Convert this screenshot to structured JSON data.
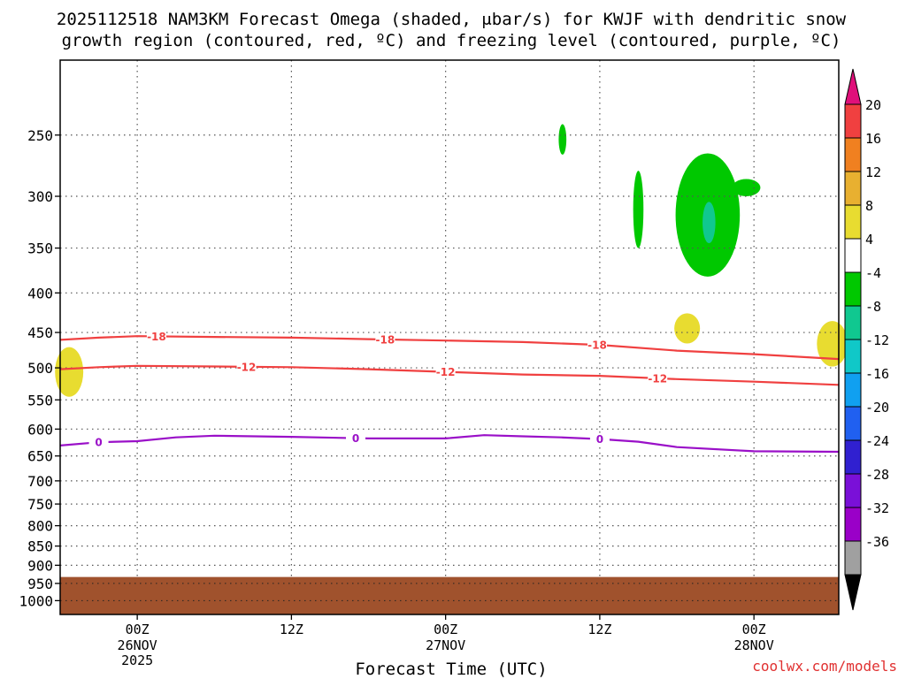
{
  "title_line1": "2025112518 NAM3KM Forecast Omega (shaded, μbar/s) for KWJF with dendritic snow",
  "title_line2": "growth region (contoured, red, ºC) and freezing level (contoured, purple, ºC)",
  "xlabel": "Forecast Time (UTC)",
  "credit": "coolwx.com/models",
  "colors": {
    "dgz_contour": "#f04040",
    "freezing_contour": "#9a10c8",
    "terrain": "#a0522d",
    "grid": "#555555"
  },
  "chart_data": {
    "type": "heatmap",
    "x_unit": "forecast hour",
    "x_ticks": [
      {
        "hour": 6,
        "label": "00Z",
        "sub1": "26NOV",
        "sub2": "2025"
      },
      {
        "hour": 18,
        "label": "12Z",
        "sub1": "",
        "sub2": ""
      },
      {
        "hour": 30,
        "label": "00Z",
        "sub1": "27NOV",
        "sub2": ""
      },
      {
        "hour": 42,
        "label": "12Z",
        "sub1": "",
        "sub2": ""
      },
      {
        "hour": 54,
        "label": "00Z",
        "sub1": "28NOV",
        "sub2": ""
      }
    ],
    "xlim": [
      0,
      60.6
    ],
    "y_unit": "pressure (hPa)",
    "y_ticks": [
      250,
      300,
      350,
      400,
      450,
      500,
      550,
      600,
      650,
      700,
      750,
      800,
      850,
      900,
      950,
      1000
    ],
    "ylim": [
      1042,
      200
    ],
    "y_scale": "log",
    "grid": true,
    "colorbar": {
      "levels": [
        -36,
        -32,
        -28,
        -24,
        -20,
        -16,
        -12,
        -8,
        -4,
        4,
        8,
        12,
        16,
        20
      ],
      "labels": [
        "20",
        "16",
        "12",
        "8",
        "4",
        "-4",
        "-8",
        "-12",
        "-16",
        "-20",
        "-24",
        "-28",
        "-32",
        "-36"
      ],
      "colors": [
        "#000000",
        "#a0a0a0",
        "#9a00c8",
        "#7a10d8",
        "#3020d0",
        "#2060f0",
        "#10a0f0",
        "#10c8c8",
        "#10c890",
        "#00c800",
        "#ffffff",
        "#e8dc30",
        "#e8b030",
        "#f08020",
        "#f04040",
        "#e0107a"
      ]
    },
    "series": [
      {
        "name": "-18",
        "kind": "dgz",
        "points": [
          [
            0,
            460
          ],
          [
            3,
            457
          ],
          [
            6,
            455
          ],
          [
            12,
            456
          ],
          [
            18,
            457
          ],
          [
            24,
            459
          ],
          [
            30,
            461
          ],
          [
            36,
            463
          ],
          [
            42,
            467
          ],
          [
            48,
            475
          ],
          [
            54,
            480
          ],
          [
            60.6,
            487
          ]
        ],
        "label_hours": [
          7.5,
          25.3,
          41.8
        ]
      },
      {
        "name": "-12",
        "kind": "dgz",
        "points": [
          [
            0,
            502
          ],
          [
            3,
            499
          ],
          [
            6,
            497
          ],
          [
            12,
            498
          ],
          [
            18,
            499
          ],
          [
            24,
            502
          ],
          [
            30,
            506
          ],
          [
            36,
            510
          ],
          [
            42,
            512
          ],
          [
            48,
            517
          ],
          [
            54,
            521
          ],
          [
            60.6,
            526
          ]
        ],
        "label_hours": [
          14.5,
          30,
          46.5
        ]
      },
      {
        "name": "0",
        "kind": "freezing",
        "points": [
          [
            0,
            630
          ],
          [
            3,
            624
          ],
          [
            6,
            622
          ],
          [
            9,
            615
          ],
          [
            12,
            612
          ],
          [
            18,
            614
          ],
          [
            24,
            617
          ],
          [
            30,
            617
          ],
          [
            33,
            611
          ],
          [
            36,
            613
          ],
          [
            39,
            615
          ],
          [
            42,
            618
          ],
          [
            45,
            623
          ],
          [
            48,
            633
          ],
          [
            54,
            641
          ],
          [
            60.6,
            642
          ]
        ],
        "label_hours": [
          3,
          23,
          42
        ]
      }
    ],
    "shaded_regions": [
      {
        "value": "-4 to -8",
        "color": "#00c800",
        "hour_center": 39.1,
        "p_top": 242,
        "p_bottom": 265,
        "width_h": 0.3
      },
      {
        "value": "-4 to -8",
        "color": "#00c800",
        "hour_center": 45,
        "p_top": 278,
        "p_bottom": 350,
        "width_h": 0.4
      },
      {
        "value": "-4 to -8",
        "color": "#00c800",
        "hour_center": 50.4,
        "p_top": 264,
        "p_bottom": 381,
        "width_h": 2.5
      },
      {
        "value": "-4 to -8",
        "color": "#00c800",
        "hour_center": 53.4,
        "p_top": 285,
        "p_bottom": 300,
        "width_h": 1.1
      },
      {
        "value": "-8 to -12",
        "color": "#10c890",
        "hour_center": 50.5,
        "p_top": 305,
        "p_bottom": 345,
        "width_h": 0.5
      },
      {
        "value": "4 to 8",
        "color": "#e8dc30",
        "hour_center": 0.7,
        "p_top": 470,
        "p_bottom": 545,
        "width_h": 1.1
      },
      {
        "value": "4 to 8",
        "color": "#e8dc30",
        "hour_center": 48.8,
        "p_top": 425,
        "p_bottom": 465,
        "width_h": 1.0
      },
      {
        "value": "4 to 8",
        "color": "#e8dc30",
        "hour_center": 60.1,
        "p_top": 435,
        "p_bottom": 498,
        "width_h": 1.2
      }
    ],
    "terrain_top_hPa": 932
  }
}
